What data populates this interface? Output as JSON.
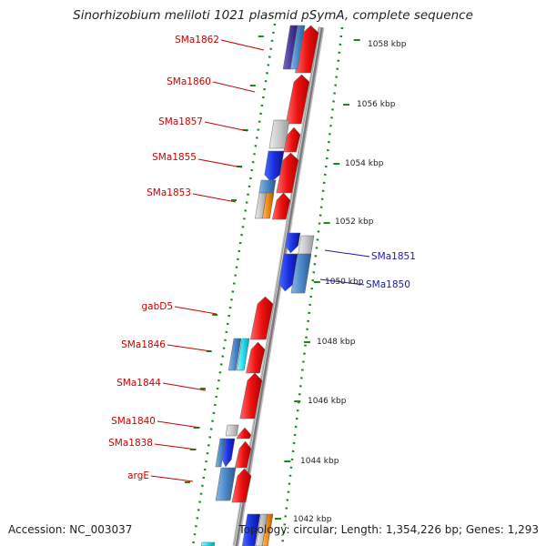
{
  "title": "Sinorhizobium meliloti 1021 plasmid pSymA, complete sequence",
  "accession": "Accession: NC_003037",
  "summary": "Topology: circular; Length: 1,354,226 bp; Genes: 1,293",
  "ticks": [
    "1042 kbp",
    "1044 kbp",
    "1046 kbp",
    "1048 kbp",
    "1050 kbp",
    "1052 kbp",
    "1054 kbp",
    "1056 kbp",
    "1058 kbp"
  ],
  "gene_labels_left": [
    "SMa1862",
    "SMa1860",
    "SMa1857",
    "SMa1855",
    "SMa1853",
    "gabD5",
    "SMa1846",
    "SMa1844",
    "SMa1840",
    "SMa1838",
    "argE"
  ],
  "gene_labels_right": [
    "SMa1851",
    "SMa1850"
  ],
  "colors": {
    "forward": "#ee1111",
    "reverse": "#1a2fe0",
    "reverse_alt": "#4a88c8",
    "grey": "#c8c8c8",
    "orange": "#f08a10",
    "cyan": "#22e0ee",
    "purple": "#4a3a9a",
    "dots": "#1a8a1a",
    "left_label": "#cc0000",
    "right_label": "#1a1aaa",
    "backbone": "#7a7a7a"
  }
}
